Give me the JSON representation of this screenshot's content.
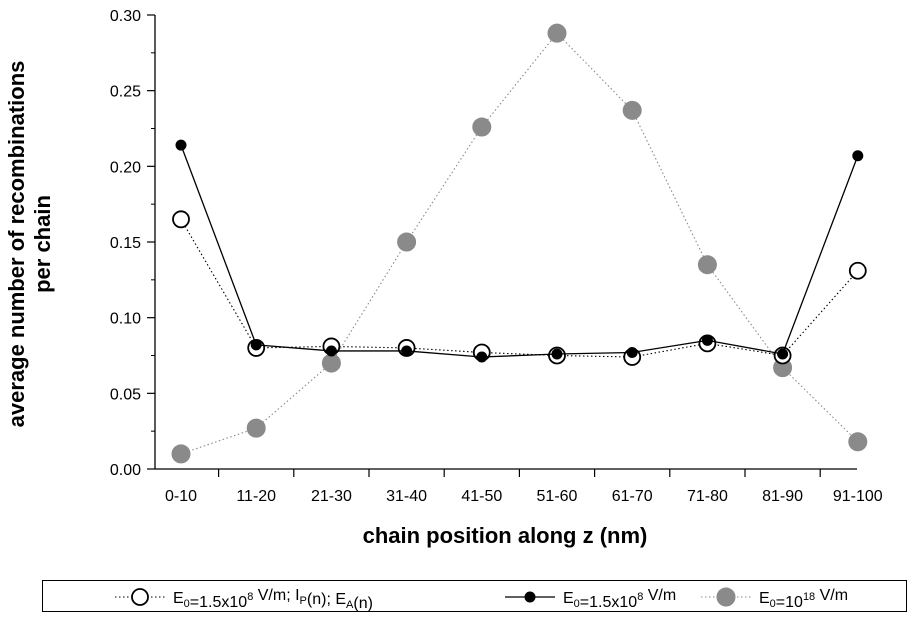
{
  "chart_data": {
    "type": "line",
    "title": "",
    "xlabel": "chain position along z (nm)",
    "ylabel_lines": [
      "average number of recombinations",
      "per chain"
    ],
    "categories": [
      "0-10",
      "11-20",
      "21-30",
      "31-40",
      "41-50",
      "51-60",
      "61-70",
      "71-80",
      "81-90",
      "91-100"
    ],
    "ylim": [
      0.0,
      0.3
    ],
    "yticks": [
      "0.00",
      "0.05",
      "0.10",
      "0.15",
      "0.20",
      "0.25",
      "0.30"
    ],
    "grid": false,
    "legend_position": "bottom",
    "series": [
      {
        "legend": {
          "parts": [
            [
              "E",
              ""
            ],
            [
              "0",
              "sub"
            ],
            [
              "=1.5x10",
              ""
            ],
            [
              "8",
              "sup"
            ],
            [
              " V/m; I",
              ""
            ],
            [
              "P",
              "sub"
            ],
            [
              "(n); E",
              ""
            ],
            [
              "A",
              "sub"
            ],
            [
              "(n)",
              ""
            ]
          ]
        },
        "values": [
          0.165,
          0.08,
          0.081,
          0.08,
          0.077,
          0.075,
          0.074,
          0.083,
          0.075,
          0.131
        ],
        "marker": "open-circle",
        "line": "dotted",
        "color": "#000000"
      },
      {
        "legend": {
          "parts": [
            [
              "E",
              ""
            ],
            [
              "0",
              "sub"
            ],
            [
              "=1.5x10",
              ""
            ],
            [
              "8",
              "sup"
            ],
            [
              " V/m",
              ""
            ]
          ]
        },
        "values": [
          0.214,
          0.082,
          0.078,
          0.078,
          0.074,
          0.076,
          0.077,
          0.085,
          0.076,
          0.207
        ],
        "marker": "filled-circle-small",
        "line": "solid",
        "color": "#000000"
      },
      {
        "legend": {
          "parts": [
            [
              "E",
              ""
            ],
            [
              "0",
              "sub"
            ],
            [
              "=10",
              ""
            ],
            [
              "18",
              "sup"
            ],
            [
              " V/m",
              ""
            ]
          ]
        },
        "values": [
          0.01,
          0.027,
          0.07,
          0.15,
          0.226,
          0.288,
          0.237,
          0.135,
          0.067,
          0.018
        ],
        "marker": "filled-circle-large",
        "line": "dotted",
        "color": "#8a8a8a"
      }
    ]
  }
}
